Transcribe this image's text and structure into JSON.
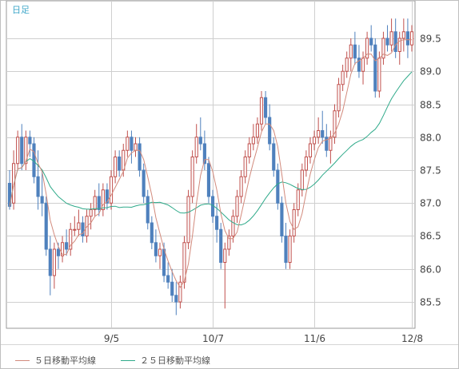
{
  "period_label": "日足",
  "legend": [
    {
      "label": "５日移動平均線",
      "color": "#d28a7c"
    },
    {
      "label": "２５日移動平均線",
      "color": "#2faa8a"
    }
  ],
  "colors": {
    "up": "#c0504d",
    "down": "#4f81bd",
    "grid": "#cfcfcf",
    "axis_text": "#444444"
  },
  "chart_data": {
    "type": "candlestick",
    "ylim": [
      85.1,
      89.9
    ],
    "y_ticks": [
      85.5,
      86.0,
      86.5,
      87.0,
      87.5,
      88.0,
      88.5,
      89.0,
      89.5
    ],
    "x_ticks": [
      {
        "label": "9/5",
        "index": 25
      },
      {
        "label": "10/7",
        "index": 50
      },
      {
        "label": "11/6",
        "index": 75
      },
      {
        "label": "12/8",
        "index": 99
      }
    ],
    "candles": [
      [
        87.3,
        87.5,
        86.9,
        86.95
      ],
      [
        87.0,
        87.8,
        86.9,
        87.6
      ],
      [
        87.6,
        88.1,
        87.5,
        88.0
      ],
      [
        88.0,
        88.2,
        87.5,
        87.6
      ],
      [
        87.6,
        88.1,
        87.5,
        88.0
      ],
      [
        88.0,
        88.1,
        87.7,
        87.9
      ],
      [
        87.9,
        88.0,
        87.3,
        87.4
      ],
      [
        87.4,
        87.8,
        86.9,
        87.1
      ],
      [
        87.1,
        87.5,
        86.8,
        87.0
      ],
      [
        87.0,
        87.1,
        86.2,
        86.3
      ],
      [
        86.3,
        86.5,
        85.6,
        85.9
      ],
      [
        85.9,
        86.4,
        85.7,
        86.3
      ],
      [
        86.3,
        86.4,
        86.0,
        86.2
      ],
      [
        86.2,
        86.5,
        86.1,
        86.4
      ],
      [
        86.4,
        86.6,
        86.2,
        86.3
      ],
      [
        86.3,
        86.7,
        86.2,
        86.6
      ],
      [
        86.6,
        86.8,
        86.5,
        86.6
      ],
      [
        86.6,
        86.9,
        86.5,
        86.7
      ],
      [
        86.7,
        86.8,
        86.4,
        86.5
      ],
      [
        86.5,
        86.9,
        86.4,
        86.8
      ],
      [
        86.8,
        87.0,
        86.6,
        86.9
      ],
      [
        86.9,
        87.2,
        86.8,
        87.1
      ],
      [
        87.1,
        87.3,
        86.8,
        86.9
      ],
      [
        86.9,
        87.3,
        86.8,
        87.2
      ],
      [
        87.2,
        87.3,
        86.9,
        87.0
      ],
      [
        87.0,
        87.5,
        86.9,
        87.4
      ],
      [
        87.4,
        87.8,
        87.3,
        87.7
      ],
      [
        87.7,
        87.8,
        87.4,
        87.5
      ],
      [
        87.5,
        87.9,
        87.4,
        87.8
      ],
      [
        87.8,
        88.1,
        87.7,
        88.0
      ],
      [
        88.0,
        88.1,
        87.6,
        87.8
      ],
      [
        87.8,
        88.0,
        87.7,
        87.9
      ],
      [
        87.9,
        88.0,
        87.4,
        87.5
      ],
      [
        87.5,
        87.6,
        87.0,
        87.1
      ],
      [
        87.1,
        87.2,
        86.6,
        86.7
      ],
      [
        86.7,
        86.8,
        86.3,
        86.4
      ],
      [
        86.4,
        86.6,
        86.1,
        86.2
      ],
      [
        86.2,
        86.4,
        86.0,
        86.3
      ],
      [
        86.3,
        86.4,
        85.8,
        85.9
      ],
      [
        85.9,
        86.1,
        85.7,
        85.8
      ],
      [
        85.8,
        86.0,
        85.5,
        85.6
      ],
      [
        85.6,
        85.8,
        85.3,
        85.5
      ],
      [
        85.5,
        85.9,
        85.4,
        85.8
      ],
      [
        85.8,
        86.5,
        85.7,
        86.4
      ],
      [
        86.4,
        87.2,
        86.3,
        87.1
      ],
      [
        87.1,
        87.8,
        87.0,
        87.7
      ],
      [
        87.7,
        88.2,
        87.6,
        88.0
      ],
      [
        88.0,
        88.3,
        87.8,
        87.9
      ],
      [
        87.9,
        88.1,
        87.5,
        87.6
      ],
      [
        87.6,
        87.7,
        87.0,
        87.1
      ],
      [
        87.1,
        87.2,
        86.7,
        86.8
      ],
      [
        86.8,
        87.0,
        86.4,
        86.6
      ],
      [
        86.6,
        86.7,
        86.0,
        86.1
      ],
      [
        86.1,
        86.4,
        85.4,
        86.3
      ],
      [
        86.3,
        86.6,
        86.2,
        86.5
      ],
      [
        86.5,
        86.9,
        86.4,
        86.8
      ],
      [
        86.8,
        87.2,
        86.7,
        87.1
      ],
      [
        87.1,
        87.5,
        87.0,
        87.4
      ],
      [
        87.4,
        87.8,
        87.3,
        87.7
      ],
      [
        87.7,
        88.0,
        87.6,
        87.9
      ],
      [
        87.9,
        88.2,
        87.8,
        88.0
      ],
      [
        88.0,
        88.3,
        87.9,
        88.2
      ],
      [
        88.2,
        88.7,
        88.1,
        88.6
      ],
      [
        88.6,
        88.7,
        88.2,
        88.3
      ],
      [
        88.3,
        88.5,
        87.8,
        87.9
      ],
      [
        87.9,
        88.0,
        87.4,
        87.5
      ],
      [
        87.5,
        87.6,
        86.9,
        87.0
      ],
      [
        87.0,
        87.1,
        86.4,
        86.5
      ],
      [
        86.5,
        86.7,
        86.0,
        86.1
      ],
      [
        86.1,
        86.6,
        86.0,
        86.5
      ],
      [
        86.5,
        87.0,
        86.4,
        86.9
      ],
      [
        86.9,
        87.3,
        86.8,
        87.2
      ],
      [
        87.2,
        87.6,
        87.1,
        87.5
      ],
      [
        87.5,
        87.8,
        87.4,
        87.7
      ],
      [
        87.7,
        88.0,
        87.6,
        87.9
      ],
      [
        87.9,
        88.1,
        87.8,
        88.0
      ],
      [
        88.0,
        88.3,
        87.9,
        88.1
      ],
      [
        88.1,
        88.4,
        87.9,
        88.0
      ],
      [
        88.0,
        88.2,
        87.7,
        87.8
      ],
      [
        87.8,
        88.1,
        87.6,
        88.0
      ],
      [
        88.0,
        88.5,
        87.9,
        88.4
      ],
      [
        88.4,
        88.9,
        88.3,
        88.8
      ],
      [
        88.8,
        89.1,
        88.7,
        89.0
      ],
      [
        89.0,
        89.3,
        88.9,
        89.2
      ],
      [
        89.2,
        89.5,
        89.0,
        89.4
      ],
      [
        89.4,
        89.6,
        89.1,
        89.2
      ],
      [
        89.2,
        89.4,
        88.9,
        89.0
      ],
      [
        89.0,
        89.3,
        88.8,
        89.2
      ],
      [
        89.2,
        89.6,
        89.1,
        89.5
      ],
      [
        89.5,
        89.7,
        89.3,
        89.4
      ],
      [
        89.4,
        89.5,
        88.6,
        88.7
      ],
      [
        88.7,
        89.3,
        88.6,
        89.2
      ],
      [
        89.2,
        89.6,
        89.1,
        89.5
      ],
      [
        89.5,
        89.7,
        89.3,
        89.4
      ],
      [
        89.4,
        89.8,
        89.3,
        89.6
      ],
      [
        89.6,
        89.8,
        89.2,
        89.3
      ],
      [
        89.3,
        89.6,
        89.1,
        89.5
      ],
      [
        89.5,
        89.8,
        89.3,
        89.6
      ],
      [
        89.6,
        89.8,
        89.2,
        89.4
      ],
      [
        89.4,
        89.7,
        89.3,
        89.6
      ]
    ],
    "series": [
      {
        "name": "５日移動平均線",
        "values": []
      },
      {
        "name": "２５日移動平均線",
        "values": []
      }
    ]
  }
}
